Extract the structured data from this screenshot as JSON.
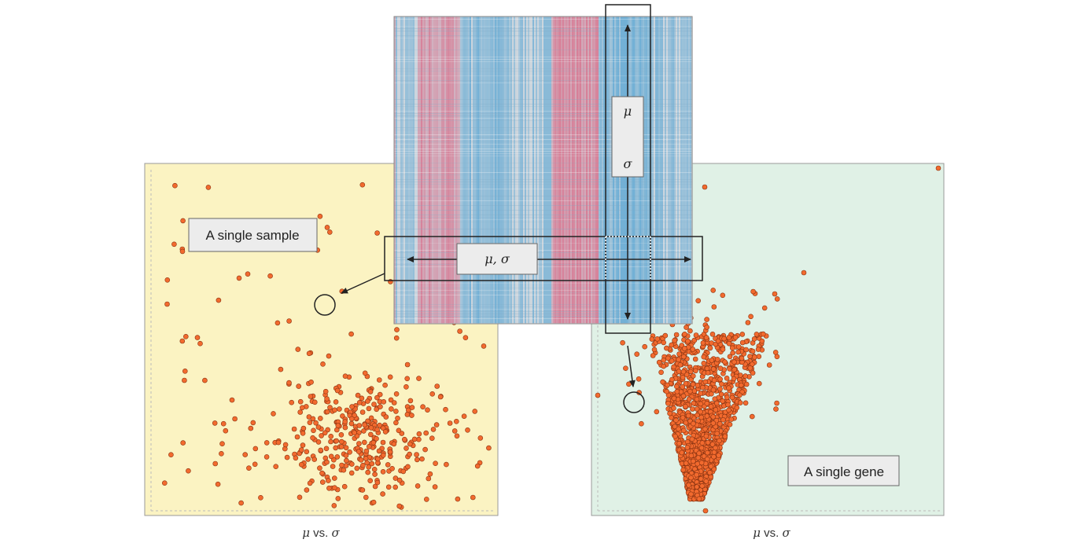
{
  "left_panel": {
    "label": "A single sample",
    "caption_mu": "μ",
    "caption_vs": " vs. ",
    "caption_sigma": "σ",
    "background": "#fbf3c2"
  },
  "right_panel": {
    "label": "A single gene",
    "caption_mu": "μ",
    "caption_vs": " vs. ",
    "caption_sigma": "σ",
    "background": "#e0f1e6"
  },
  "heatmap": {
    "row_label": "μ, σ",
    "column_label_mu": "μ",
    "column_label_sigma": "σ",
    "colors": {
      "red": "#d96a86",
      "blue": "#5aa6d3",
      "neutral": "#c9d3dc"
    }
  },
  "colors": {
    "point_fill": "#f26a2e",
    "point_stroke": "#8a3412",
    "frame": "#222222"
  }
}
